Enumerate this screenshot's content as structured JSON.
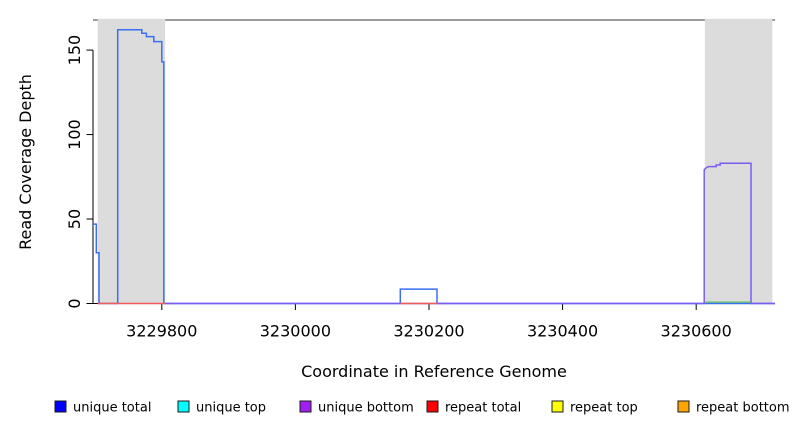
{
  "figure": {
    "background": "#ffffff",
    "frame_color": "#7c7c7c",
    "axis_color": "#000000",
    "highlight_color": "#dcdcdc"
  },
  "chart_data": {
    "type": "line",
    "title": "",
    "xlabel": "Coordinate in Reference Genome",
    "ylabel": "Read Coverage Depth",
    "xlim": [
      3229697,
      3230718
    ],
    "ylim": [
      0,
      167.8
    ],
    "x_ticks": [
      3229800,
      3230000,
      3230200,
      3230400,
      3230600
    ],
    "y_ticks": [
      0,
      50,
      100,
      150
    ],
    "grid": false,
    "legend_position": "bottom",
    "top_frame_line": true,
    "highlight_regions": [
      {
        "x0": 3229704,
        "x1": 3229805
      },
      {
        "x0": 3230613,
        "x1": 3230714
      }
    ],
    "series": [
      {
        "name": "unique total",
        "legend_color": "#0000ff",
        "line_color": "#3a6ef5",
        "segments": [
          [
            [
              3229697,
              47
            ],
            [
              3229702,
              47
            ],
            [
              3229702,
              30
            ],
            [
              3229706,
              30
            ],
            [
              3229706,
              0
            ],
            [
              3229734,
              0
            ],
            [
              3229734,
              162
            ],
            [
              3229770,
              162
            ],
            [
              3229770,
              160
            ],
            [
              3229777,
              160
            ],
            [
              3229777,
              158
            ],
            [
              3229788,
              158
            ],
            [
              3229788,
              155
            ],
            [
              3229800,
              155
            ],
            [
              3229800,
              143
            ],
            [
              3229803,
              143
            ],
            [
              3229803,
              0
            ],
            [
              3230157,
              0
            ],
            [
              3230157,
              8.5
            ],
            [
              3230212,
              8.5
            ],
            [
              3230212,
              0
            ],
            [
              3230718,
              0
            ]
          ]
        ]
      },
      {
        "name": "unique top",
        "legend_color": "#00ffff",
        "line_color": "#00ffff",
        "segments": []
      },
      {
        "name": "unique bottom",
        "legend_color": "#a020f0",
        "line_color": "#7b5cf0",
        "segments": [
          [
            [
              3229804,
              0
            ],
            [
              3230612,
              0
            ],
            [
              3230612,
              79
            ],
            [
              3230614,
              80
            ],
            [
              3230618,
              81
            ],
            [
              3230630,
              81
            ],
            [
              3230630,
              82
            ],
            [
              3230636,
              82
            ],
            [
              3230636,
              83
            ],
            [
              3230682,
              83
            ],
            [
              3230682,
              0
            ],
            [
              3230718,
              0
            ]
          ]
        ]
      },
      {
        "name": "repeat total",
        "legend_color": "#ff0000",
        "line_color": "#f05c5c",
        "segments": [
          [
            [
              3229704,
              0
            ],
            [
              3229805,
              0
            ]
          ],
          [
            [
              3230157,
              0
            ],
            [
              3230212,
              0
            ]
          ]
        ]
      },
      {
        "name": "repeat top",
        "legend_color": "#ffff00",
        "line_color": "#ffff00",
        "segments": []
      },
      {
        "name": "repeat bottom",
        "legend_color": "#ffa500",
        "line_color": "#ffa500",
        "segments": []
      }
    ],
    "overlap_baseline_segments": [
      {
        "x0": 3230614,
        "x1": 3230682,
        "color": "#5dbd6a"
      }
    ]
  }
}
